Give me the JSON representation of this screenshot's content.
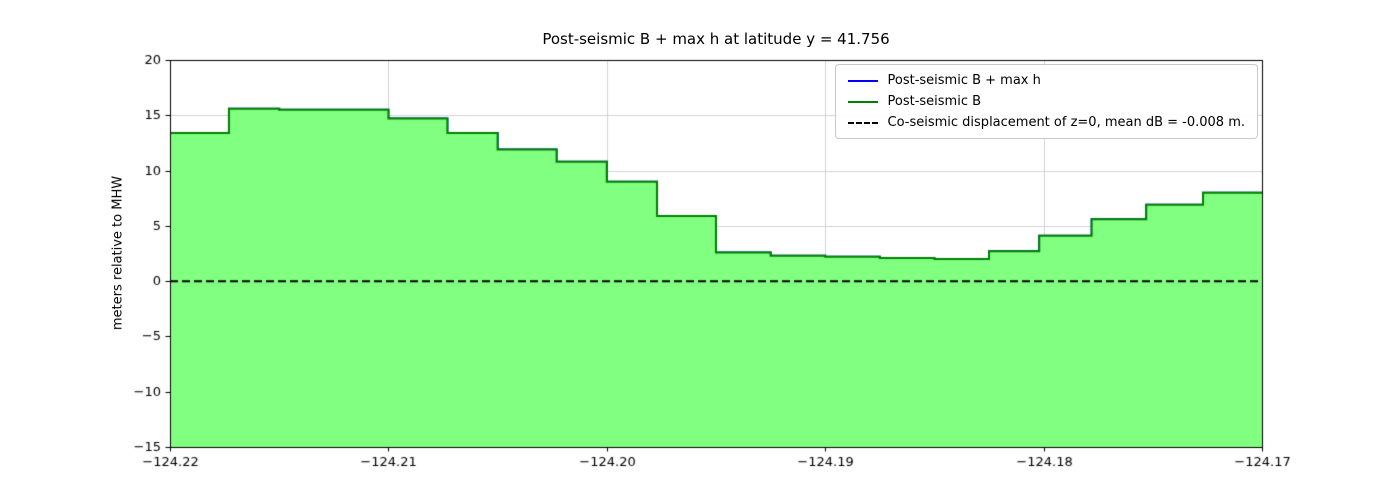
{
  "figure": {
    "title": "Post-seismic B + max h at latitude y = 41.756",
    "ylabel": "meters relative to MHW"
  },
  "legend": {
    "items": [
      {
        "label": "Post-seismic B + max h",
        "color": "#0000ff",
        "dash": false
      },
      {
        "label": "Post-seismic B",
        "color": "#008000",
        "dash": false
      },
      {
        "label": "Co-seismic displacement of z=0, mean dB = -0.008 m.",
        "color": "#000000",
        "dash": true
      }
    ]
  },
  "chart_data": {
    "type": "area",
    "title": "Post-seismic B + max h at latitude y = 41.756",
    "xlabel": "",
    "ylabel": "meters relative to MHW",
    "xlim": [
      -124.22,
      -124.17
    ],
    "ylim": [
      -15,
      20
    ],
    "x_ticks": [
      -124.22,
      -124.21,
      -124.2,
      -124.19,
      -124.18,
      -124.17
    ],
    "x_tick_labels": [
      "−124.22",
      "−124.21",
      "−124.20",
      "−124.19",
      "−124.18",
      "−124.17"
    ],
    "y_ticks": [
      -15,
      -10,
      -5,
      0,
      5,
      10,
      15,
      20
    ],
    "y_tick_labels": [
      "−15",
      "−10",
      "−5",
      "0",
      "5",
      "10",
      "15",
      "20"
    ],
    "grid": true,
    "legend_position": "upper right",
    "step_mode": "post",
    "x": [
      -124.22,
      -124.2173,
      -124.215,
      -124.21,
      -124.2073,
      -124.205,
      -124.2023,
      -124.2,
      -124.1977,
      -124.195,
      -124.1925,
      -124.19,
      -124.1875,
      -124.185,
      -124.1825,
      -124.1802,
      -124.1778,
      -124.1753,
      -124.1727,
      -124.17
    ],
    "series": [
      {
        "name": "Post-seismic B + max h",
        "color": "#0000ff",
        "style": "solid",
        "values": [
          13.4,
          15.6,
          15.5,
          14.7,
          13.4,
          11.9,
          10.8,
          9.0,
          5.9,
          2.6,
          2.3,
          2.2,
          2.1,
          2.0,
          2.7,
          4.1,
          5.6,
          6.9,
          8.0,
          8.0
        ]
      },
      {
        "name": "Post-seismic B",
        "color": "#008000",
        "fill": "#80ff80",
        "style": "solid",
        "values": [
          13.4,
          15.6,
          15.5,
          14.7,
          13.4,
          11.9,
          10.8,
          9.0,
          5.9,
          2.6,
          2.3,
          2.2,
          2.1,
          2.0,
          2.7,
          4.1,
          5.6,
          6.9,
          8.0,
          8.0
        ]
      },
      {
        "name": "Co-seismic displacement of z=0, mean dB = -0.008 m.",
        "color": "#000000",
        "style": "dashed",
        "value": 0
      }
    ]
  }
}
